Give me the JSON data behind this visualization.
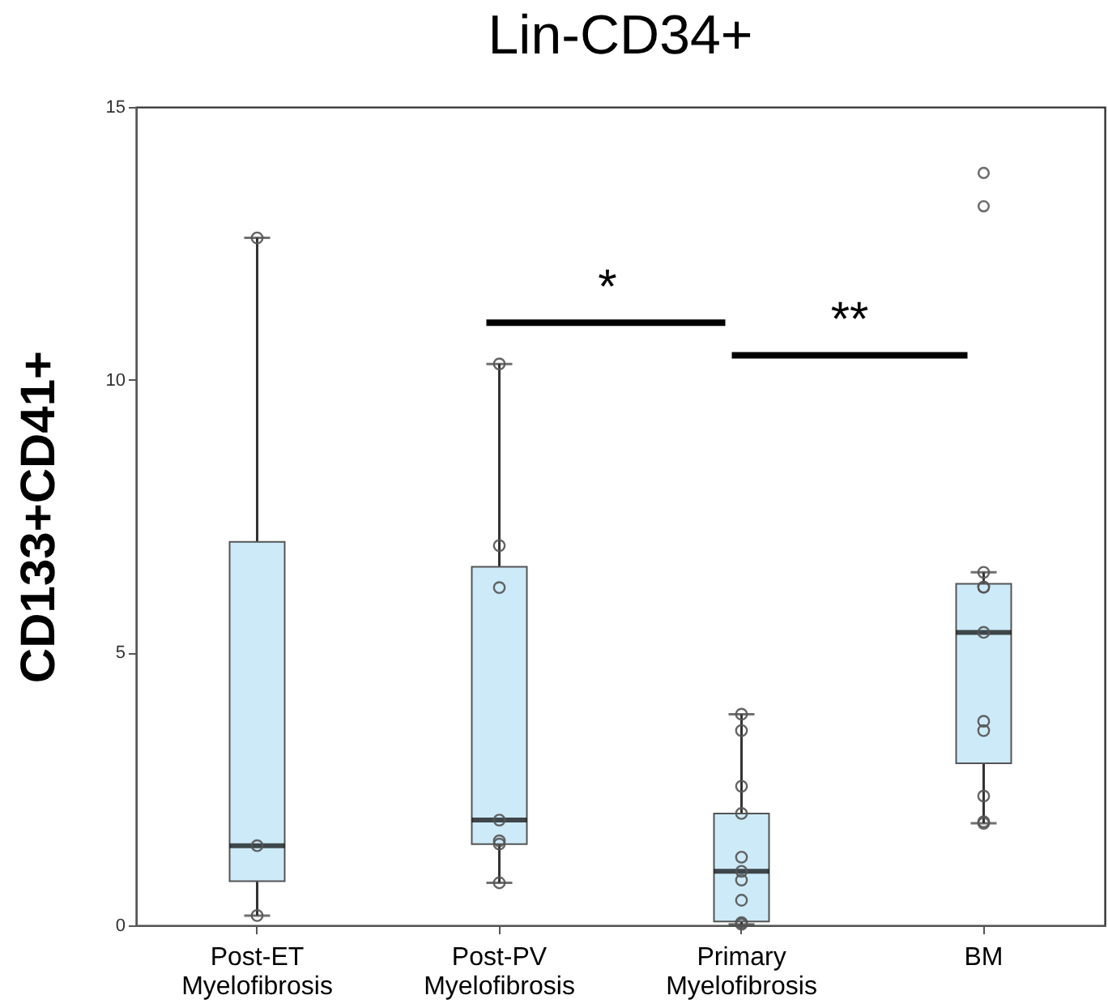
{
  "chart_data": {
    "type": "box",
    "title": "Lin-CD34+",
    "ylabel": "CD133+CD41+",
    "categories": [
      "Post-ET Myelofibrosis",
      "Post-PV Myelofibrosis",
      "Primary Myelofibrosis",
      "BM"
    ],
    "ylim": [
      0,
      15
    ],
    "yticks": [
      0,
      5,
      10,
      15
    ],
    "boxes": [
      {
        "low": 0.18,
        "q1": 0.81,
        "median": 1.46,
        "q3": 7.03,
        "high": 12.6
      },
      {
        "low": 0.78,
        "q1": 1.49,
        "median": 1.93,
        "q3": 6.57,
        "high": 10.29
      },
      {
        "low": 0.02,
        "q1": 0.07,
        "median": 0.99,
        "q3": 2.05,
        "high": 3.87
      },
      {
        "low": 1.87,
        "q1": 2.97,
        "median": 5.37,
        "q3": 6.26,
        "high": 6.47,
        "outliers": [
          13.79,
          13.18
        ]
      }
    ],
    "color": "#cdeaf8",
    "series": [
      {
        "type": "scatter",
        "color": "#555555",
        "marker": "circle",
        "x": [
          "Post-ET Myelofibrosis",
          "Post-ET Myelofibrosis",
          "Post-ET Myelofibrosis",
          "Post-PV Myelofibrosis",
          "Post-PV Myelofibrosis",
          "Post-PV Myelofibrosis",
          "Post-PV Myelofibrosis",
          "Post-PV Myelofibrosis",
          "Post-PV Myelofibrosis",
          "Post-PV Myelofibrosis",
          "Primary Myelofibrosis",
          "Primary Myelofibrosis",
          "Primary Myelofibrosis",
          "Primary Myelofibrosis",
          "Primary Myelofibrosis",
          "Primary Myelofibrosis",
          "Primary Myelofibrosis",
          "Primary Myelofibrosis",
          "Primary Myelofibrosis",
          "Primary Myelofibrosis",
          "BM",
          "BM",
          "BM",
          "BM",
          "BM",
          "BM",
          "BM",
          "BM",
          "BM"
        ],
        "values": [
          12.6,
          1.46,
          0.18,
          10.29,
          6.96,
          6.19,
          1.93,
          1.55,
          1.49,
          0.78,
          3.87,
          3.57,
          2.55,
          2.05,
          1.25,
          0.99,
          0.83,
          0.46,
          0.05,
          0.02,
          6.47,
          6.2,
          6.2,
          5.37,
          3.74,
          3.57,
          2.37,
          1.9,
          1.87
        ]
      }
    ],
    "annotations": [
      "*",
      "**"
    ]
  }
}
